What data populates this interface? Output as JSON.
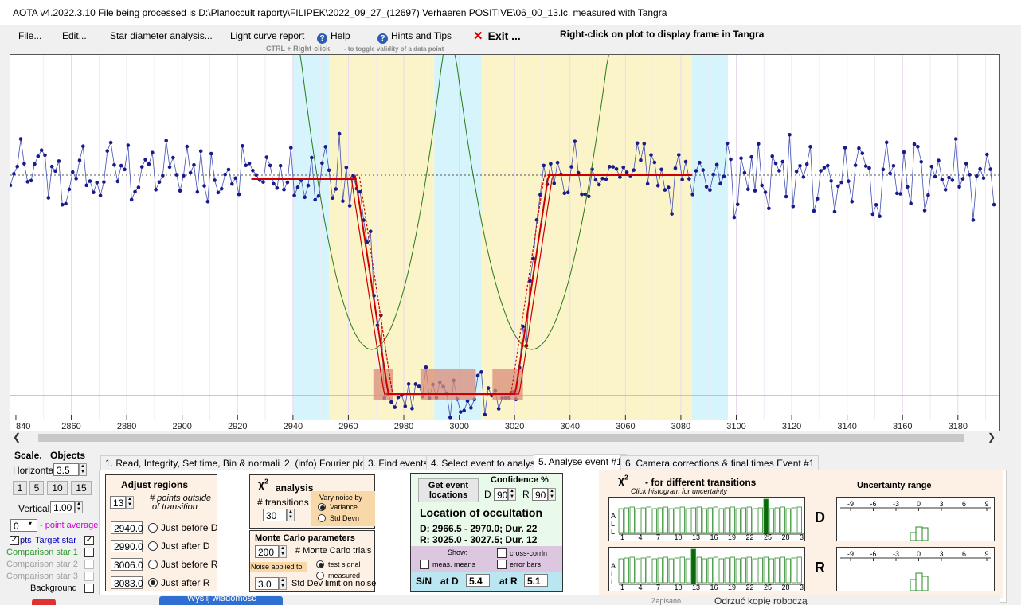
{
  "window": {
    "title": "AOTA v4.2022.3.10    File being processed is D:\\Planoccult raporty\\FILIPEK\\2022_09_27_(12697) Verhaeren POSITIVE\\06_00_13.lc, measured with Tangra"
  },
  "menu": {
    "file": "File...",
    "edit": "Edit...",
    "star_diameter": "Star diameter analysis...",
    "light_curve": "Light curve report",
    "help": "Help",
    "hints": "Hints and Tips",
    "exit": "Exit ...",
    "right_click_hint": "Right-click on plot to display frame in Tangra",
    "ctrl_hint_key": "CTRL + Right-click",
    "ctrl_hint_text": "-  to toggle validity of a data point"
  },
  "colors": {
    "blue_region": "#d6f4fb",
    "yellow_region": "#fbf4c8",
    "data": "#1a1a8c",
    "model": "#cc0000",
    "parabola": "#2a7a1a",
    "baseline": "#e6a020",
    "box": "#d98c78"
  },
  "chart_data": {
    "type": "line",
    "x_tick_labels": [
      "840",
      "2860",
      "2880",
      "2900",
      "2920",
      "2940",
      "2960",
      "2980",
      "3000",
      "3020",
      "3040",
      "3060",
      "3080",
      "3100",
      "3120",
      "3140",
      "3160",
      "3180"
    ],
    "xlim": [
      2838,
      3195
    ],
    "regions": [
      {
        "kind": "blue",
        "from": 2940,
        "to": 2953
      },
      {
        "kind": "yellow",
        "from": 2953,
        "to": 2991
      },
      {
        "kind": "blue",
        "from": 2991,
        "to": 3008
      },
      {
        "kind": "yellow",
        "from": 3008,
        "to": 3084
      },
      {
        "kind": "blue",
        "from": 3084,
        "to": 3097
      }
    ],
    "model_d": 2968.4,
    "model_r": 3026.2,
    "baseline_level": "full",
    "event_level": "bottom"
  },
  "scale": {
    "title": "Scale.",
    "objects_title": "Objects",
    "horizontal_label": "Horizontal",
    "horizontal_value": "3.5",
    "buttons": [
      "1",
      "5",
      "10",
      "15"
    ],
    "vertical_label": "Vertical",
    "vertical_value": "1.00",
    "point_avg_value": "0",
    "point_avg_label": "- point average"
  },
  "objects": {
    "pts": "pts",
    "target": "Target star",
    "comp1": "Comparison star 1",
    "comp2": "Comparison star 2",
    "comp3": "Comparison star 3",
    "background": "Background"
  },
  "tabs": [
    "1. Read, Integrity, Set time, Bin & normalise",
    "2. (info)  Fourier plot",
    "3. Find events",
    "4. Select event to analyse",
    "5. Analyse event #1",
    "6. Camera corrections & final times Event #1"
  ],
  "adjust": {
    "title": "Adjust regions",
    "points_value": "13",
    "points_label_1": "# points outside",
    "points_label_2": "of transition",
    "v1": "2940.0",
    "l1": "Just before D",
    "v2": "2990.0",
    "l2": "Just after D",
    "v3": "3006.0",
    "l3": "Just before R",
    "v4": "3083.0",
    "l4": "Just after R"
  },
  "chi2": {
    "title": "analysis",
    "transitions_label": "# transitions",
    "transitions_value": "30",
    "vary_noise_1": "Vary noise by",
    "variance": "Variance",
    "std_devn": "Std Devn"
  },
  "monte_carlo": {
    "title": "Monte Carlo parameters",
    "trials_value": "200",
    "trials_label": "# Monte Carlo trials",
    "noise_applied": "Noise applied to",
    "test_signal": "test signal",
    "measured": "measured",
    "sd_value": "3.0",
    "sd_label": "Std Dev limit on noise"
  },
  "event": {
    "get_btn_1": "Get event",
    "get_btn_2": "locations",
    "confidence": "Confidence %",
    "d_label": "D",
    "d_value": "90",
    "r_label": "R",
    "r_value": "90",
    "location_title": "Location of occultation",
    "d_line": "D: 2966.5 - 2970.0; Dur. 22",
    "r_line": "R: 3025.0 - 3027.5; Dur. 12",
    "show": "Show:",
    "meas_means": "meas. means",
    "cross_corr": "cross-corrln",
    "error_bars": "error bars",
    "sn": "S/N",
    "at_d": "at D",
    "sn_d": "5.4",
    "at_r": "at R",
    "sn_r": "5.1"
  },
  "chi2_hist": {
    "title": "- for different transitions",
    "subtitle": "Click histogram for uncertainty",
    "side": "A L L",
    "ticks": [
      "1",
      "4",
      "7",
      "10",
      "13",
      "16",
      "19",
      "22",
      "25",
      "28",
      "3"
    ],
    "d_label": "D",
    "r_label": "R"
  },
  "uncertainty": {
    "title": "Uncertainty range",
    "ticks": [
      "-9",
      "-6",
      "-3",
      "0",
      "3",
      "6",
      "9"
    ]
  },
  "taskbar": {
    "wyslij": "Wyślij wiadomość",
    "zapisano": "Zapisano",
    "odrzuc": "Odrzuć kopię roboczą"
  }
}
